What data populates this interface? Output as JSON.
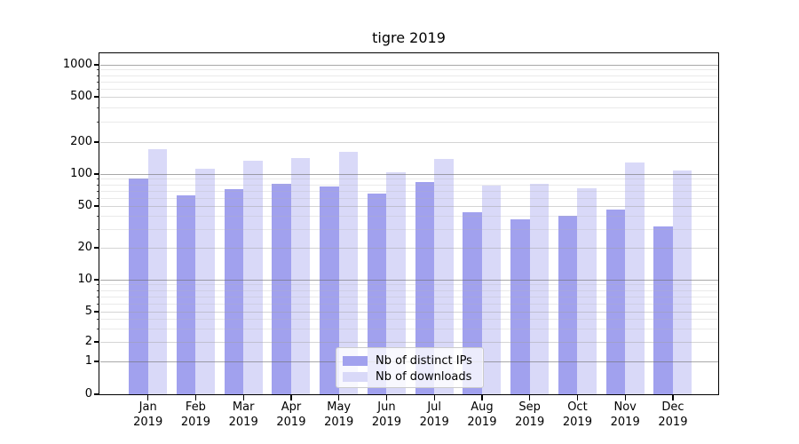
{
  "chart_data": {
    "type": "bar",
    "title": "tigre 2019",
    "categories": [
      "Jan 2019",
      "Feb 2019",
      "Mar 2019",
      "Apr 2019",
      "May 2019",
      "Jun 2019",
      "Jul 2019",
      "Aug 2019",
      "Sep 2019",
      "Oct 2019",
      "Nov 2019",
      "Dec 2019"
    ],
    "series": [
      {
        "name": "Nb of distinct IPs",
        "color": "#a1a1ee",
        "values": [
          90,
          63,
          72,
          81,
          76,
          65,
          84,
          44,
          37,
          40,
          46,
          32
        ]
      },
      {
        "name": "Nb of downloads",
        "color": "#d9d9f8",
        "values": [
          170,
          112,
          133,
          142,
          162,
          103,
          140,
          78,
          81,
          74,
          129,
          108
        ]
      }
    ],
    "yscale": "symlog",
    "yticks": [
      0,
      1,
      2,
      5,
      10,
      20,
      50,
      100,
      200,
      500,
      1000
    ],
    "ylim": [
      0,
      1300
    ],
    "grid": "on",
    "legend_position": "lower center",
    "spine_color": "#000000",
    "grid_color": "#b0b0b0"
  }
}
